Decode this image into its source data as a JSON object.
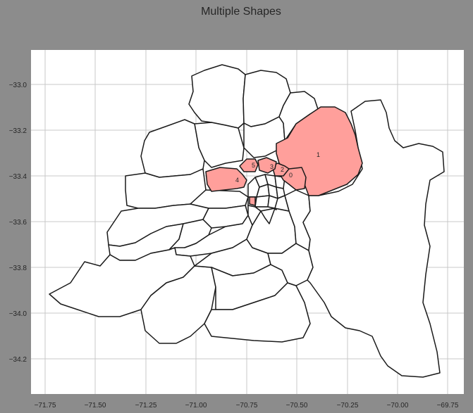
{
  "chart_data": {
    "type": "map",
    "title": "Multiple Shapes",
    "xlim": [
      -71.8,
      -69.7
    ],
    "ylim": [
      -34.35,
      -32.85
    ],
    "x_ticks": [
      "−71.75",
      "−71.50",
      "−71.25",
      "−71.00",
      "−70.75",
      "−70.50",
      "−70.25",
      "−70.00",
      "−69.75"
    ],
    "y_ticks": [
      "−33.0",
      "−33.2",
      "−33.4",
      "−33.6",
      "−33.8",
      "−34.0",
      "−34.2"
    ],
    "grid": true,
    "highlight_color": "#ff9f9b",
    "highlighted_regions": [
      {
        "label": "0"
      },
      {
        "label": "1"
      },
      {
        "label": "2"
      },
      {
        "label": "3"
      },
      {
        "label": "4"
      },
      {
        "label": "5"
      }
    ]
  }
}
